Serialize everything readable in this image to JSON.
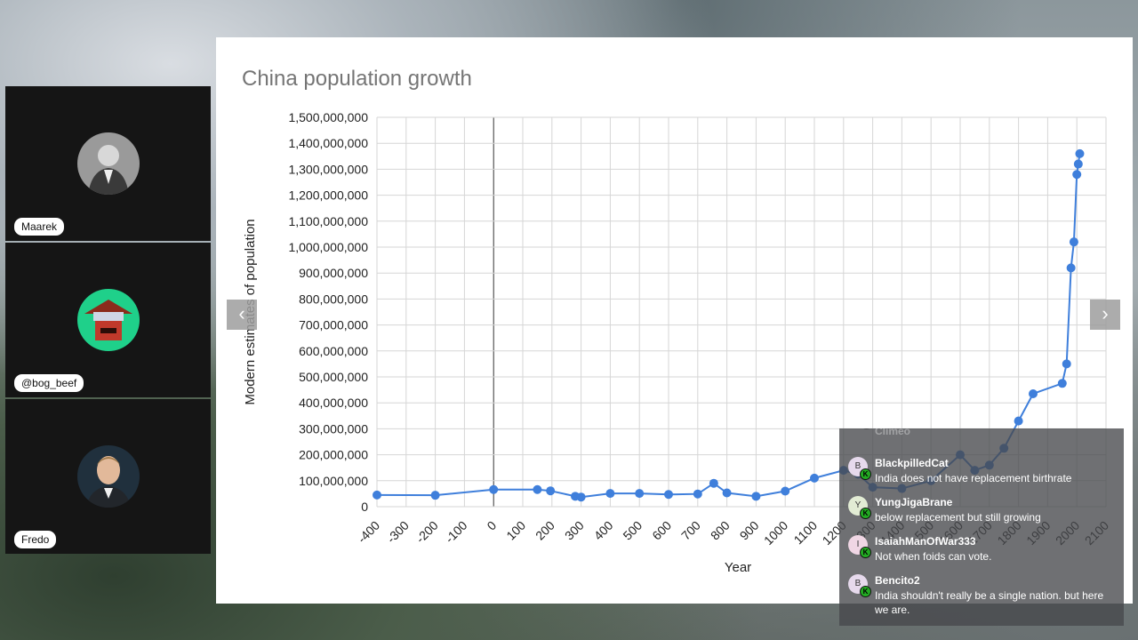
{
  "participants": [
    {
      "name": "Maarek",
      "avatar": "man-in-suit-photo"
    },
    {
      "name": "@bog_beef",
      "avatar": "pixel-art-bandit"
    },
    {
      "name": "Fredo",
      "avatar": "man-portrait-photo"
    }
  ],
  "slide": {
    "title": "China population growth",
    "prev_icon": "chevron-left-icon",
    "next_icon": "chevron-right-icon"
  },
  "chart_data": {
    "type": "line",
    "title": "China population growth",
    "xlabel": "Year",
    "ylabel": "Modern estimates of population",
    "xlim": [
      -400,
      2100
    ],
    "ylim": [
      0,
      1500000000
    ],
    "grid": true,
    "x_ticks": [
      -400,
      -300,
      -200,
      -100,
      0,
      100,
      200,
      300,
      400,
      500,
      600,
      700,
      800,
      900,
      1000,
      1100,
      1200,
      1300,
      1400,
      1500,
      1600,
      1700,
      1800,
      1900,
      2000,
      2100
    ],
    "x_tick_labels": [
      "-400",
      "-300",
      "-200",
      "-100",
      "0",
      "100",
      "200",
      "300",
      "400",
      "500",
      "600",
      "700",
      "800",
      "900",
      "1000",
      "1100",
      "1200",
      "1300",
      "1400",
      "1500",
      "1600",
      "1700",
      "1800",
      "1900",
      "2000",
      "2100"
    ],
    "y_ticks": [
      0,
      100000000,
      200000000,
      300000000,
      400000000,
      500000000,
      600000000,
      700000000,
      800000000,
      900000000,
      1000000000,
      1100000000,
      1200000000,
      1300000000,
      1400000000,
      1500000000
    ],
    "y_tick_labels": [
      "0",
      "100,000,000",
      "200,000,000",
      "300,000,000",
      "400,000,000",
      "500,000,000",
      "600,000,000",
      "700,000,000",
      "800,000,000",
      "900,000,000",
      "1,000,000,000",
      "1,100,000,000",
      "1,200,000,000",
      "1,300,000,000",
      "1,400,000,000",
      "1,500,000,000"
    ],
    "x": [
      -400,
      -200,
      0,
      150,
      195,
      280,
      300,
      400,
      500,
      600,
      700,
      755,
      800,
      900,
      1000,
      1100,
      1200,
      1250,
      1300,
      1400,
      1500,
      1600,
      1650,
      1700,
      1750,
      1800,
      1850,
      1950,
      1965,
      1980,
      1990,
      2000,
      2005,
      2010
    ],
    "y": [
      45000000,
      44000000,
      66000000,
      66000000,
      61000000,
      40000000,
      37000000,
      51000000,
      51000000,
      47000000,
      49000000,
      90000000,
      53000000,
      40000000,
      60000000,
      110000000,
      140000000,
      125000000,
      75000000,
      70000000,
      100000000,
      200000000,
      140000000,
      160000000,
      225000000,
      330000000,
      435000000,
      475000000,
      550000000,
      920000000,
      1020000000,
      1280000000,
      1320000000,
      1360000000
    ],
    "series_color": "#3f7fdb"
  },
  "chat": {
    "messages": [
      {
        "initial": "",
        "user": "Climeo",
        "text": ""
      },
      {
        "initial": "B",
        "user": "BlackpilledCat",
        "text": "India does not have replacement birthrate"
      },
      {
        "initial": "Y",
        "user": "YungJigaBrane",
        "text": "below replacement but still growing"
      },
      {
        "initial": "I",
        "user": "IsaiahManOfWar333",
        "text": "Not when foids can vote."
      },
      {
        "initial": "B",
        "user": "Bencito2",
        "text": "India shouldn't really be a single nation. but here we are."
      }
    ]
  }
}
